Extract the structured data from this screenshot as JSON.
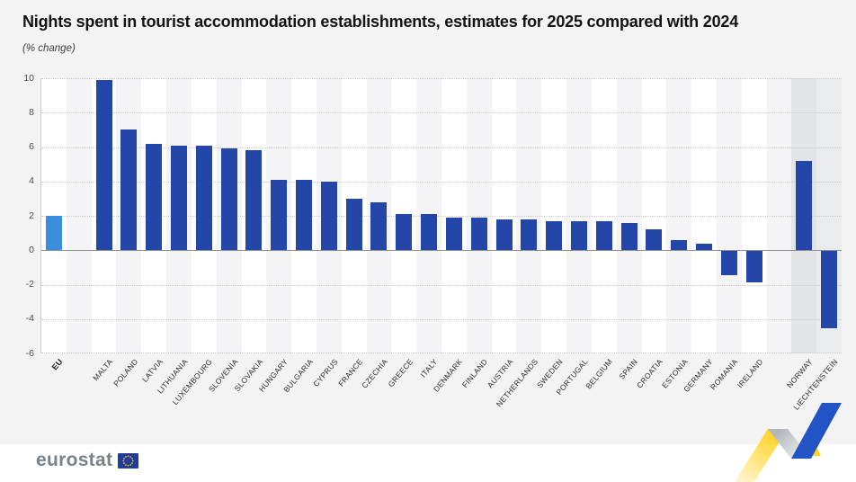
{
  "header": {
    "title": "Nights spent in tourist accommodation establishments, estimates for 2025 compared with 2024",
    "subtitle": "(% change)"
  },
  "chart_data": {
    "type": "bar",
    "title": "Nights spent in tourist accommodation establishments, estimates for 2025 compared with 2024",
    "unit_label": "(% change)",
    "ylim": [
      -6,
      10
    ],
    "yticks": [
      10,
      8,
      6,
      4,
      2,
      0,
      -2,
      -4,
      -6
    ],
    "grid": "horizontal-dotted",
    "legend": "none",
    "series": [
      {
        "label": "EU",
        "value": 2.0,
        "group": "eu"
      },
      {
        "label": "MALTA",
        "value": 9.9,
        "group": "member"
      },
      {
        "label": "POLAND",
        "value": 7.0,
        "group": "member"
      },
      {
        "label": "LATVIA",
        "value": 6.2,
        "group": "member"
      },
      {
        "label": "LITHUANIA",
        "value": 6.1,
        "group": "member"
      },
      {
        "label": "LUXEMBOURG",
        "value": 6.1,
        "group": "member"
      },
      {
        "label": "SLOVENIA",
        "value": 5.9,
        "group": "member"
      },
      {
        "label": "SLOVAKIA",
        "value": 5.8,
        "group": "member"
      },
      {
        "label": "HUNGARY",
        "value": 4.1,
        "group": "member"
      },
      {
        "label": "BULGARIA",
        "value": 4.1,
        "group": "member"
      },
      {
        "label": "CYPRUS",
        "value": 4.0,
        "group": "member"
      },
      {
        "label": "FRANCE",
        "value": 3.0,
        "group": "member"
      },
      {
        "label": "CZECHIA",
        "value": 2.8,
        "group": "member"
      },
      {
        "label": "GREECE",
        "value": 2.1,
        "group": "member"
      },
      {
        "label": "ITALY",
        "value": 2.1,
        "group": "member"
      },
      {
        "label": "DENMARK",
        "value": 1.9,
        "group": "member"
      },
      {
        "label": "FINLAND",
        "value": 1.9,
        "group": "member"
      },
      {
        "label": "AUSTRIA",
        "value": 1.8,
        "group": "member"
      },
      {
        "label": "NETHERLANDS",
        "value": 1.8,
        "group": "member"
      },
      {
        "label": "SWEDEN",
        "value": 1.7,
        "group": "member"
      },
      {
        "label": "PORTUGAL",
        "value": 1.7,
        "group": "member"
      },
      {
        "label": "BELGIUM",
        "value": 1.7,
        "group": "member"
      },
      {
        "label": "SPAIN",
        "value": 1.6,
        "group": "member"
      },
      {
        "label": "CROATIA",
        "value": 1.2,
        "group": "member"
      },
      {
        "label": "ESTONIA",
        "value": 0.6,
        "group": "member"
      },
      {
        "label": "GERMANY",
        "value": 0.4,
        "group": "member"
      },
      {
        "label": "ROMANIA",
        "value": -1.4,
        "group": "member"
      },
      {
        "label": "IRELAND",
        "value": -1.8,
        "group": "member"
      },
      {
        "label": "NORWAY",
        "value": 5.2,
        "group": "efta"
      },
      {
        "label": "LIECHTENSTEIN",
        "value": -4.5,
        "group": "efta"
      }
    ]
  },
  "colors": {
    "eu_bar": "#3b8ede",
    "country_bar": "#2446a8",
    "stripe_white": "#ffffff",
    "stripe_gray": "#f4f4f6",
    "efta_stripe_dark": "#e3e4e6",
    "efta_stripe_light": "#eaebed",
    "zero_line": "#8f8f8f",
    "grid_line": "#c9cacd",
    "ribbon_yellow": "#ffd21c",
    "ribbon_blue": "#2254c5",
    "flag_blue": "#1f3d99",
    "flag_star_yellow": "#ffcc00"
  },
  "footer": {
    "logo_text": "eurostat"
  }
}
